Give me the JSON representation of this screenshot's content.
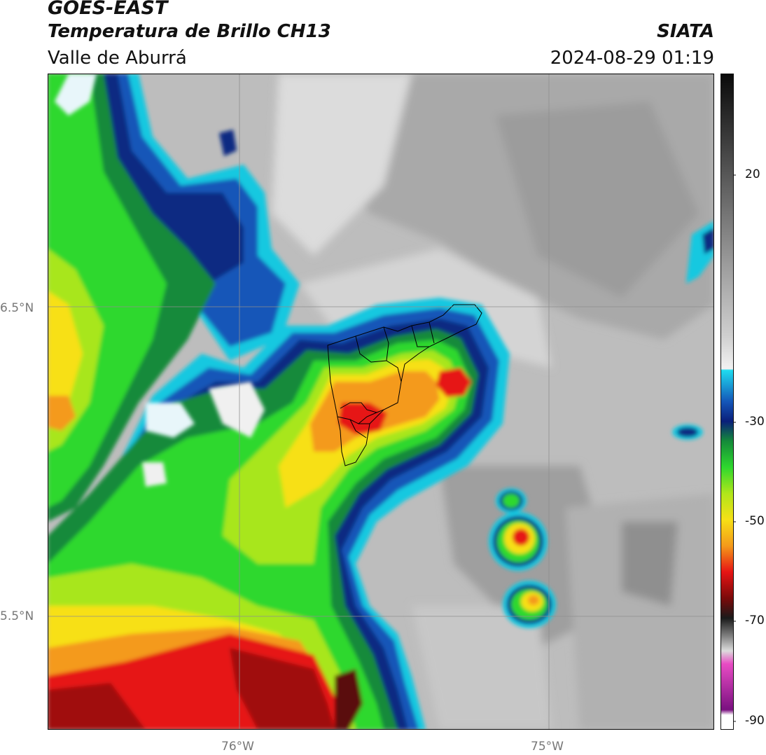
{
  "header": {
    "satellite": "GOES-EAST",
    "product": "Temperatura de Brillo CH13",
    "region": "Valle de Aburrá",
    "organization": "SIATA",
    "timestamp": "2024-08-29 01:19"
  },
  "axes": {
    "lat_labels": [
      "6.5°N",
      "5.5°N"
    ],
    "lon_labels": [
      "76°W",
      "75°W"
    ]
  },
  "colorbar": {
    "tick_labels": [
      "20",
      "-30",
      "-50",
      "-70",
      "-90"
    ]
  },
  "colors": {
    "background": "#ffffff",
    "grid": "#888888",
    "border": "#111111"
  }
}
